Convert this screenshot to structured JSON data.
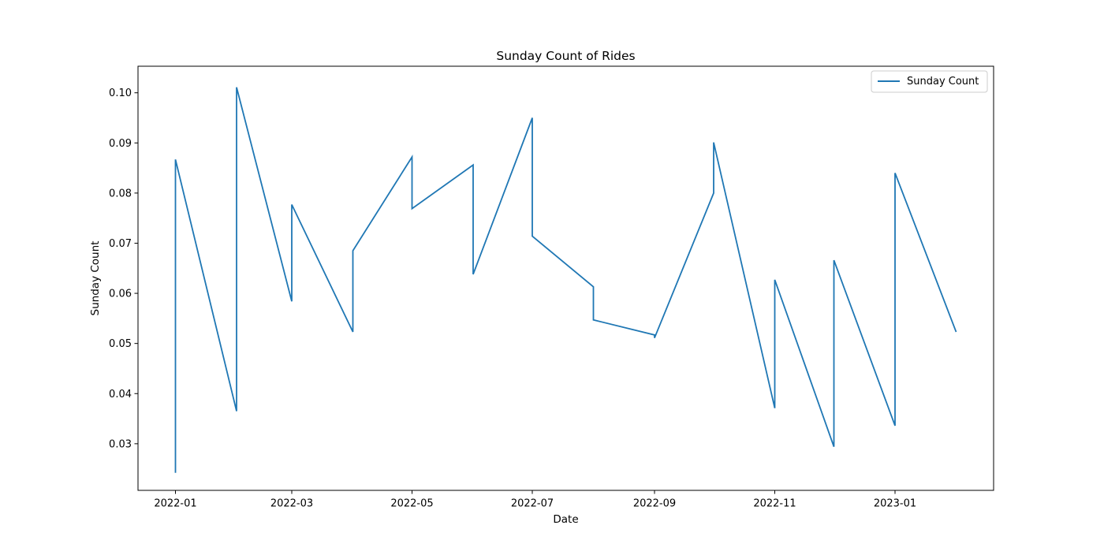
{
  "chart_data": {
    "type": "line",
    "title": "Sunday Count of Rides",
    "xlabel": "Date",
    "ylabel": "Sunday Count",
    "x_range": [
      "2021-12-13",
      "2023-02-20"
    ],
    "ylim": [
      0.0207,
      0.1053
    ],
    "x_ticks": [
      "2022-01",
      "2022-03",
      "2022-05",
      "2022-07",
      "2022-09",
      "2022-11",
      "2023-01"
    ],
    "x_tick_dates": [
      "2022-01-01",
      "2022-03-01",
      "2022-05-01",
      "2022-07-01",
      "2022-09-01",
      "2022-11-01",
      "2023-01-01"
    ],
    "y_ticks": [
      0.03,
      0.04,
      0.05,
      0.06,
      0.07,
      0.08,
      0.09,
      0.1
    ],
    "y_tick_labels": [
      "0.03",
      "0.04",
      "0.05",
      "0.06",
      "0.07",
      "0.08",
      "0.09",
      "0.10"
    ],
    "grid": false,
    "legend_position": "top-right",
    "series": [
      {
        "name": "Sunday Count",
        "color": "#1f77b4",
        "x": [
          "2022-01-01",
          "2022-01-01",
          "2022-02-01",
          "2022-02-01",
          "2022-03-01",
          "2022-03-01",
          "2022-04-01",
          "2022-04-01",
          "2022-05-01",
          "2022-05-01",
          "2022-06-01",
          "2022-06-01",
          "2022-07-01",
          "2022-07-01",
          "2022-08-01",
          "2022-08-01",
          "2022-09-01",
          "2022-09-01",
          "2022-10-01",
          "2022-10-01",
          "2022-11-01",
          "2022-11-01",
          "2022-12-01",
          "2022-12-01",
          "2023-01-01",
          "2023-01-01",
          "2023-02-01"
        ],
        "y": [
          0.0242,
          0.0867,
          0.0365,
          0.1011,
          0.0584,
          0.0777,
          0.0523,
          0.0685,
          0.0872,
          0.0769,
          0.0856,
          0.0638,
          0.095,
          0.0714,
          0.0613,
          0.0547,
          0.0517,
          0.0511,
          0.08,
          0.0901,
          0.0371,
          0.0627,
          0.0294,
          0.0666,
          0.0336,
          0.084,
          0.0523
        ]
      }
    ]
  }
}
